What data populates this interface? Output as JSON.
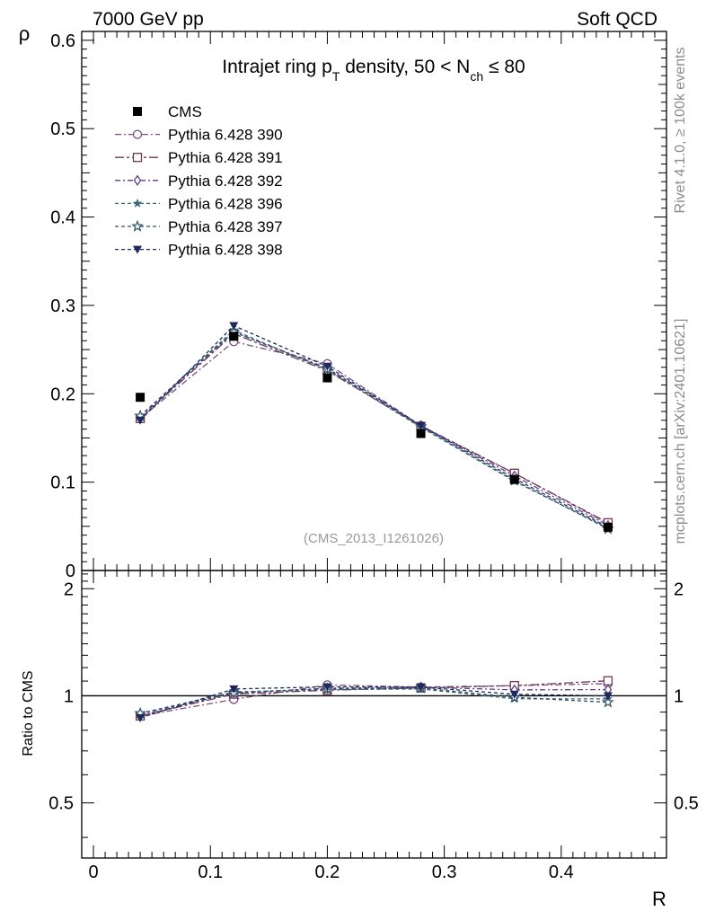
{
  "header": {
    "left": "7000 GeV pp",
    "right": "Soft QCD"
  },
  "side_labels": {
    "rivet": "Rivet 4.1.0, ≥ 100k events",
    "mcplots": "mcplots.cern.ch [arXiv:2401.10621]"
  },
  "chart_data": {
    "type": "line",
    "title_parts": {
      "a": "Intrajet ring p",
      "a_sub": "T",
      "b": " density, 50 < N",
      "b_sub": "ch",
      "c": " ≤ 80"
    },
    "watermark": "(CMS_2013_I1261026)",
    "xlabel": "R",
    "ylabel": "ρ",
    "ratio_ylabel": "Ratio to CMS",
    "xlim": [
      -0.01,
      0.49
    ],
    "ylim": [
      0,
      0.61
    ],
    "ratio_ylim": [
      0.35,
      2.25
    ],
    "x_ticks": [
      0,
      0.1,
      0.2,
      0.3,
      0.4
    ],
    "x_tick_labels": [
      "0",
      "0.1",
      "0.2",
      "0.3",
      "0.4"
    ],
    "y_ticks": [
      0,
      0.1,
      0.2,
      0.3,
      0.4,
      0.5,
      0.6
    ],
    "y_tick_labels": [
      "0",
      "0.1",
      "0.2",
      "0.3",
      "0.4",
      "0.5",
      "0.6"
    ],
    "ratio_ticks": [
      0.5,
      1,
      2
    ],
    "ratio_tick_labels": [
      "0.5",
      "1",
      "2"
    ],
    "x": [
      0.04,
      0.12,
      0.2,
      0.28,
      0.36,
      0.44
    ],
    "reference": {
      "name": "CMS",
      "values": [
        0.196,
        0.265,
        0.218,
        0.155,
        0.103,
        0.049
      ],
      "color": "#000000",
      "marker": "filled-square"
    },
    "series": [
      {
        "name": "Pythia 6.428 390",
        "values": [
          0.172,
          0.259,
          0.234,
          0.164,
          0.11,
          0.053
        ],
        "ratio": [
          0.877,
          0.977,
          1.073,
          1.058,
          1.068,
          1.082
        ],
        "color": "#7a4f80",
        "marker": "open-circle",
        "dash": "7,3,2,3"
      },
      {
        "name": "Pythia 6.428 391",
        "values": [
          0.172,
          0.268,
          0.226,
          0.163,
          0.11,
          0.054
        ],
        "ratio": [
          0.878,
          1.011,
          1.037,
          1.052,
          1.068,
          1.102
        ],
        "color": "#6e3a50",
        "marker": "open-square",
        "dash": "10,3,3,3"
      },
      {
        "name": "Pythia 6.428 392",
        "values": [
          0.173,
          0.27,
          0.229,
          0.164,
          0.107,
          0.051
        ],
        "ratio": [
          0.883,
          1.019,
          1.05,
          1.058,
          1.039,
          1.041
        ],
        "color": "#5a3c8a",
        "marker": "open-diamond",
        "dash": "6,3,2,3"
      },
      {
        "name": "Pythia 6.428 396",
        "values": [
          0.175,
          0.272,
          0.227,
          0.162,
          0.101,
          0.048
        ],
        "ratio": [
          0.893,
          1.026,
          1.041,
          1.045,
          0.981,
          0.98
        ],
        "color": "#3f6a78",
        "marker": "filled-star",
        "dash": "4,3"
      },
      {
        "name": "Pythia 6.428 397",
        "values": [
          0.175,
          0.27,
          0.228,
          0.163,
          0.102,
          0.047
        ],
        "ratio": [
          0.893,
          1.019,
          1.046,
          1.052,
          0.99,
          0.959
        ],
        "color": "#2f4f6a",
        "marker": "open-star",
        "dash": "4,3"
      },
      {
        "name": "Pythia 6.428 398",
        "values": [
          0.17,
          0.277,
          0.231,
          0.164,
          0.104,
          0.049
        ],
        "ratio": [
          0.867,
          1.045,
          1.06,
          1.058,
          1.01,
          1.0
        ],
        "color": "#1e2a5e",
        "marker": "filled-triangle-down",
        "dash": "4,3"
      }
    ]
  }
}
